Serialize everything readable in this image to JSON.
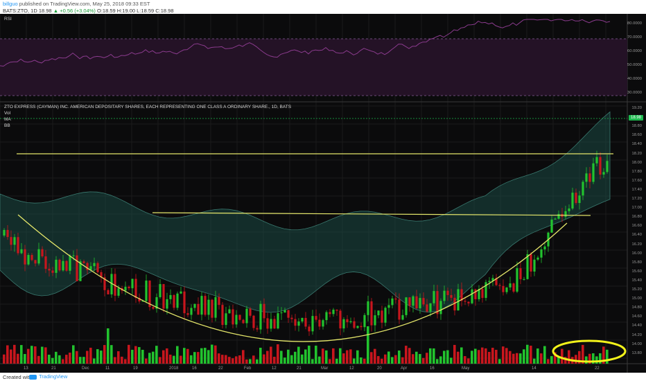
{
  "header": {
    "author": "billguo",
    "published": "published on TradingView.com, May 25, 2018 09:33 EST",
    "symbol": "BATS:ZTO, 1D",
    "last": "18.98",
    "change": "▲ +0.56 (+3.04%)",
    "ohlc": "O:18.59 H:19.00 L:18.59 C:18.98"
  },
  "rsi_panel": {
    "label": "RSI",
    "levels": [
      "80.0000",
      "70.0000",
      "60.0000",
      "50.0000",
      "40.0000",
      "30.0000"
    ]
  },
  "main_panel": {
    "title": "ZTO EXPRESS (CAYMAN) INC. AMERICAN DEPOSITARY SHARES, EACH REPRESENTING ONE CLASS A ORDINARY SHARE., 1D, BATS",
    "indicators": [
      "Vol",
      "MA",
      "BB"
    ],
    "price_levels": [
      "19.20",
      "19.00",
      "18.80",
      "18.60",
      "18.40",
      "18.20",
      "18.00",
      "17.80",
      "17.60",
      "17.40",
      "17.20",
      "17.00",
      "16.80",
      "16.60",
      "16.40",
      "16.20",
      "16.00",
      "15.80",
      "15.60",
      "15.40",
      "15.20",
      "15.00",
      "14.80",
      "14.60",
      "14.40",
      "14.20",
      "14.00",
      "13.80"
    ],
    "current_price_tag": "18.98"
  },
  "x_axis": {
    "labels": [
      "13",
      "21",
      "Dec",
      "11",
      "19",
      "2018",
      "16",
      "22",
      "Feb",
      "12",
      "21",
      "Mar",
      "12",
      "20",
      "Apr",
      "16",
      "May",
      "14",
      "22"
    ]
  },
  "footer": {
    "created_with": "Created with",
    "brand": "TradingView"
  },
  "colors": {
    "background": "#0b0b0c",
    "up": "#22c32e",
    "down": "#c8161d",
    "bb_fill": "#1c4a44",
    "trendlines": "#e4e66a",
    "rsi_line": "#8b3b8e",
    "volume_highlight": "#f2f21a"
  }
}
